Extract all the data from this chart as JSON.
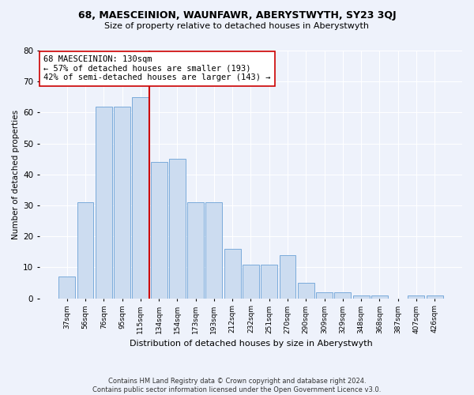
{
  "title": "68, MAESCEINION, WAUNFAWR, ABERYSTWYTH, SY23 3QJ",
  "subtitle": "Size of property relative to detached houses in Aberystwyth",
  "xlabel": "Distribution of detached houses by size in Aberystwyth",
  "ylabel": "Number of detached properties",
  "categories": [
    "37sqm",
    "56sqm",
    "76sqm",
    "95sqm",
    "115sqm",
    "134sqm",
    "154sqm",
    "173sqm",
    "193sqm",
    "212sqm",
    "232sqm",
    "251sqm",
    "270sqm",
    "290sqm",
    "309sqm",
    "329sqm",
    "348sqm",
    "368sqm",
    "387sqm",
    "407sqm",
    "426sqm"
  ],
  "values": [
    7,
    31,
    62,
    62,
    65,
    44,
    45,
    31,
    31,
    16,
    11,
    11,
    14,
    5,
    2,
    2,
    1,
    1,
    0,
    1,
    1
  ],
  "bar_color": "#ccdcf0",
  "bar_edge_color": "#7aabdb",
  "vline_color": "#cc0000",
  "vline_index": 4.5,
  "annotation_text": "68 MAESCEINION: 130sqm\n← 57% of detached houses are smaller (193)\n42% of semi-detached houses are larger (143) →",
  "annotation_box_color": "white",
  "annotation_box_edge": "#cc0000",
  "annotation_fontsize": 7.5,
  "footer": "Contains HM Land Registry data © Crown copyright and database right 2024.\nContains public sector information licensed under the Open Government Licence v3.0.",
  "bg_color": "#eef2fb",
  "grid_color": "white",
  "ylim": [
    0,
    80
  ],
  "yticks": [
    0,
    10,
    20,
    30,
    40,
    50,
    60,
    70,
    80
  ],
  "title_fontsize": 9,
  "subtitle_fontsize": 8,
  "xlabel_fontsize": 8,
  "ylabel_fontsize": 7.5,
  "xtick_fontsize": 6.5,
  "ytick_fontsize": 7.5
}
